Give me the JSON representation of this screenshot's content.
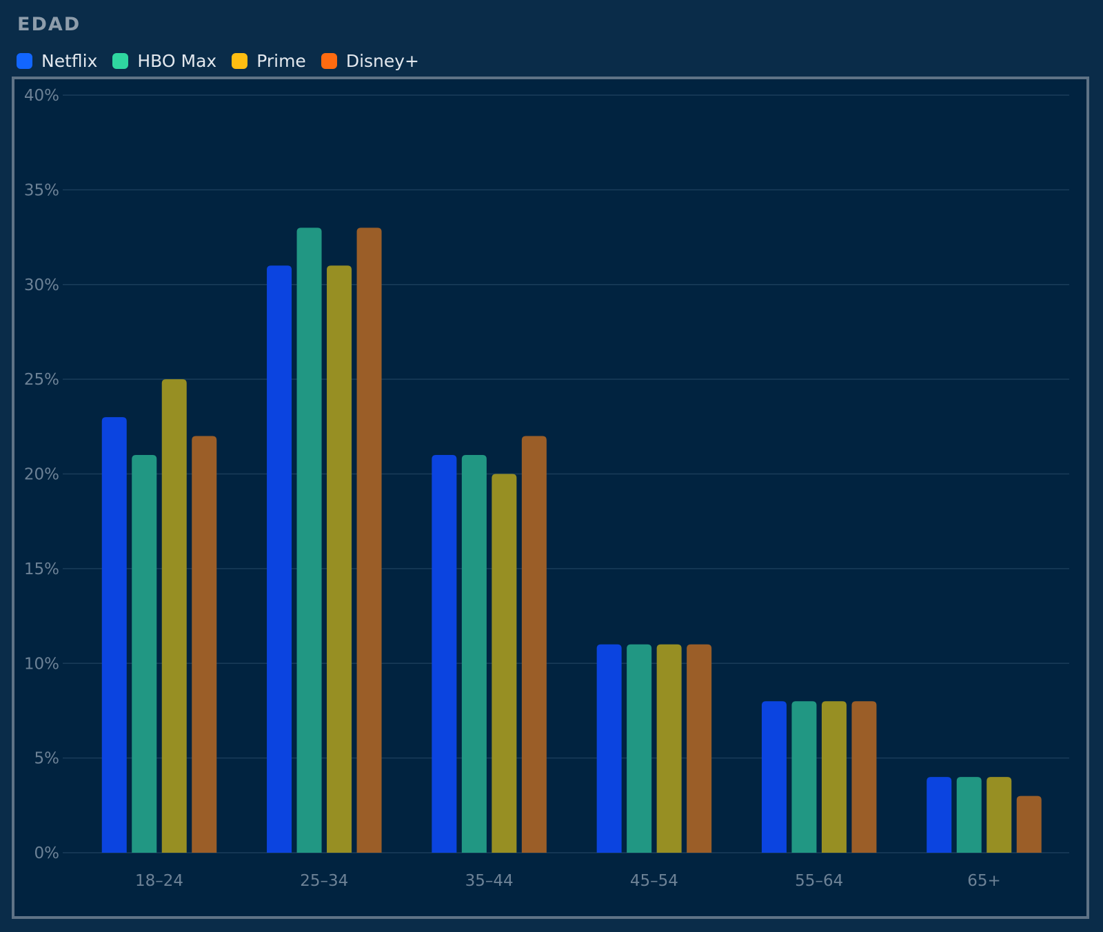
{
  "header": {
    "title": "EDAD"
  },
  "chart_data": {
    "type": "bar",
    "title": "EDAD",
    "categories": [
      "18–24",
      "25–34",
      "35–44",
      "45–54",
      "55–64",
      "65+"
    ],
    "series": [
      {
        "name": "Netflix",
        "color": "#0b44e0",
        "legend_color": "#1266ff",
        "values": [
          23,
          31,
          21,
          11,
          8,
          4
        ]
      },
      {
        "name": "HBO Max",
        "color": "#219783",
        "legend_color": "#2fd6a0",
        "values": [
          21,
          33,
          21,
          11,
          8,
          4
        ]
      },
      {
        "name": "Prime",
        "color": "#978f23",
        "legend_color": "#ffbe12",
        "values": [
          25,
          31,
          20,
          11,
          8,
          4
        ]
      },
      {
        "name": "Disney+",
        "color": "#9b5e28",
        "legend_color": "#ff6b10",
        "values": [
          22,
          33,
          22,
          11,
          8,
          3
        ]
      }
    ],
    "yticks": [
      "0%",
      "5%",
      "10%",
      "15%",
      "20%",
      "25%",
      "30%",
      "35%",
      "40%"
    ],
    "ylim": [
      0,
      40
    ],
    "grid": true,
    "legend_position": "top-left"
  }
}
